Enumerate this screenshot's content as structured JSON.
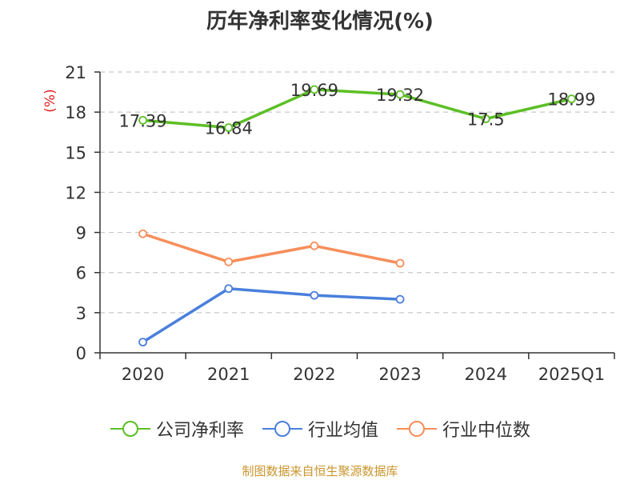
{
  "title": "历年净利率变化情况(%)",
  "footer": "制图数据来自恒生聚源数据库",
  "colors": {
    "company": "#5cbf25",
    "industry_avg": "#4a7fdc",
    "industry_median": "#f78e5a",
    "ylabel": "#e02020",
    "footer": "#c9952d"
  },
  "chart_data": {
    "type": "line",
    "title": "历年净利率变化情况(%)",
    "xlabel": "",
    "ylabel": "(%)",
    "categories": [
      "2020",
      "2021",
      "2022",
      "2023",
      "2024",
      "2025Q1"
    ],
    "ylim": [
      0,
      21
    ],
    "yticks": [
      0,
      3,
      6,
      9,
      12,
      15,
      18,
      21
    ],
    "grid": true,
    "legend_position": "bottom",
    "series": [
      {
        "name": "公司净利率",
        "values": [
          17.39,
          16.84,
          19.69,
          19.32,
          17.5,
          18.99
        ],
        "labels": [
          "17.39",
          "16.84",
          "19.69",
          "19.32",
          "17.5",
          "18.99"
        ]
      },
      {
        "name": "行业均值",
        "values": [
          0.8,
          4.8,
          4.3,
          4.0,
          null,
          null
        ]
      },
      {
        "name": "行业中位数",
        "values": [
          8.9,
          6.8,
          8.0,
          6.7,
          null,
          null
        ]
      }
    ]
  }
}
